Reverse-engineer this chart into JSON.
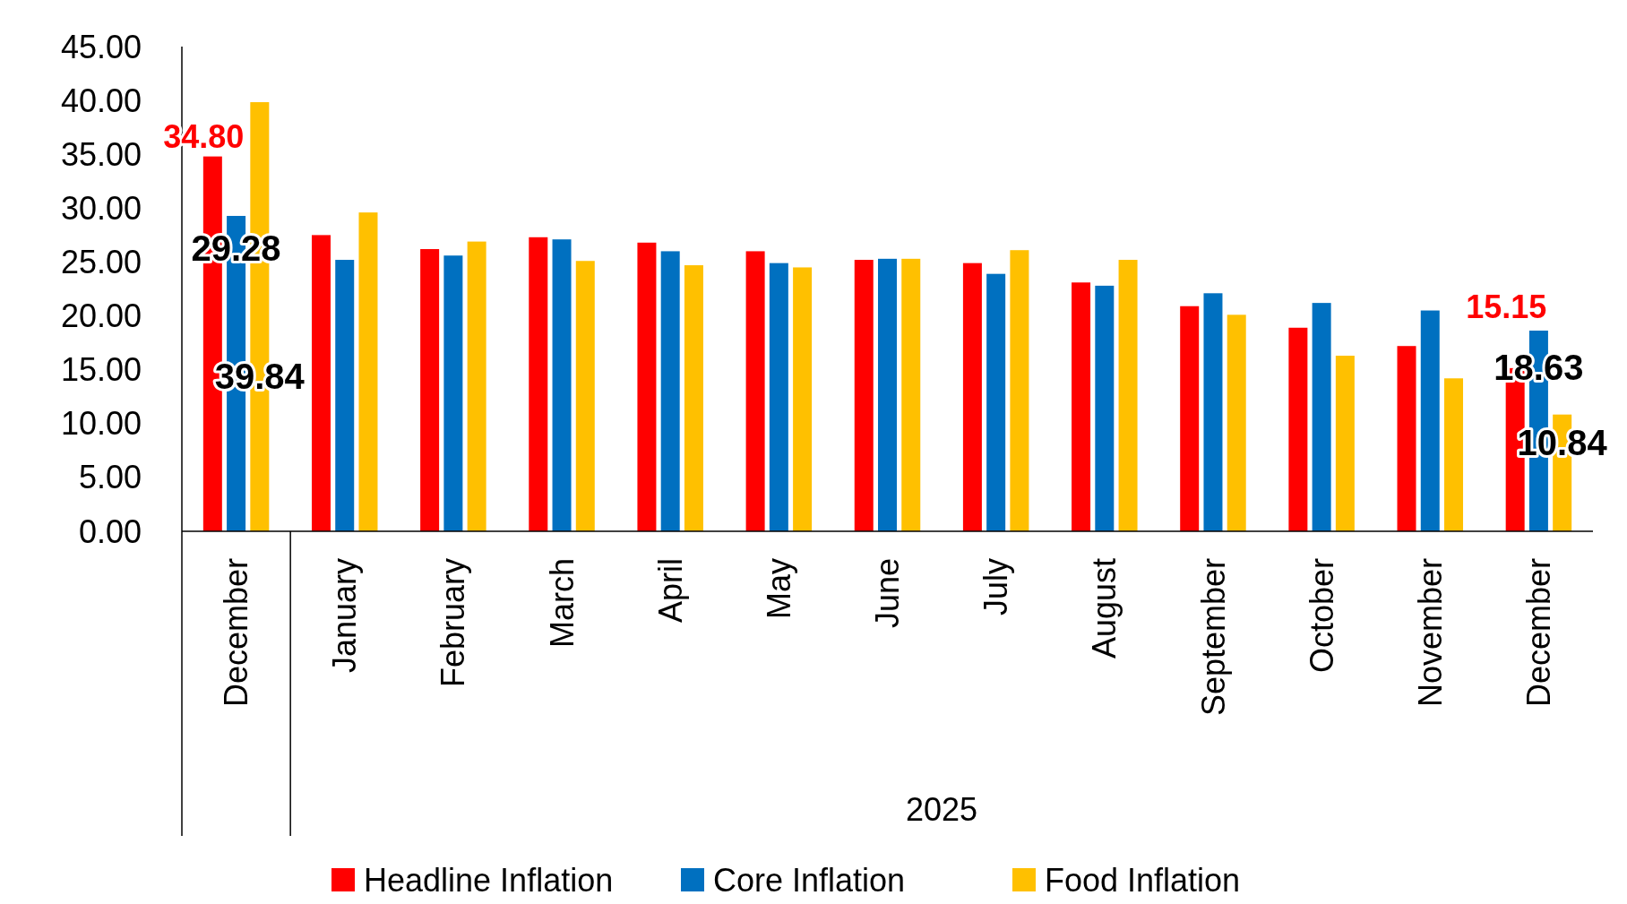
{
  "chart_data": {
    "type": "bar",
    "categories": [
      "December",
      "January",
      "February",
      "March",
      "April",
      "May",
      "June",
      "July",
      "August",
      "September",
      "October",
      "November",
      "December"
    ],
    "series": [
      {
        "name": "Headline Inflation",
        "color": "#ff0000",
        "values": [
          34.8,
          27.5,
          26.2,
          27.3,
          26.8,
          26.0,
          25.2,
          24.9,
          23.1,
          20.9,
          18.9,
          17.2,
          15.15
        ],
        "value_labels": [
          "34.80",
          null,
          null,
          null,
          null,
          null,
          null,
          null,
          null,
          null,
          null,
          null,
          "15.15"
        ]
      },
      {
        "name": "Core Inflation",
        "color": "#0070c0",
        "values": [
          29.28,
          25.2,
          25.6,
          27.1,
          26.0,
          24.9,
          25.3,
          23.9,
          22.8,
          22.1,
          21.2,
          20.5,
          18.63
        ],
        "value_labels": [
          "29.28",
          null,
          null,
          null,
          null,
          null,
          null,
          null,
          null,
          null,
          null,
          null,
          "18.63"
        ]
      },
      {
        "name": "Food Inflation",
        "color": "#ffc000",
        "values": [
          39.84,
          29.6,
          26.9,
          25.1,
          24.7,
          24.5,
          25.3,
          26.1,
          25.2,
          20.1,
          16.3,
          14.2,
          10.84
        ],
        "value_labels": [
          "39.84",
          null,
          null,
          null,
          null,
          null,
          null,
          null,
          null,
          null,
          null,
          null,
          "10.84"
        ]
      }
    ],
    "ylim": [
      0,
      45
    ],
    "yticks": [
      {
        "value": 0,
        "label": "0.00"
      },
      {
        "value": 5,
        "label": "5.00"
      },
      {
        "value": 10,
        "label": "10.00"
      },
      {
        "value": 15,
        "label": "15.00"
      },
      {
        "value": 20,
        "label": "20.00"
      },
      {
        "value": 25,
        "label": "25.00"
      },
      {
        "value": 30,
        "label": "30.00"
      },
      {
        "value": 35,
        "label": "35.00"
      },
      {
        "value": 40,
        "label": "40.00"
      },
      {
        "value": 45,
        "label": "45.00"
      }
    ],
    "annotations": [
      "2025"
    ],
    "legend": "bottom"
  }
}
